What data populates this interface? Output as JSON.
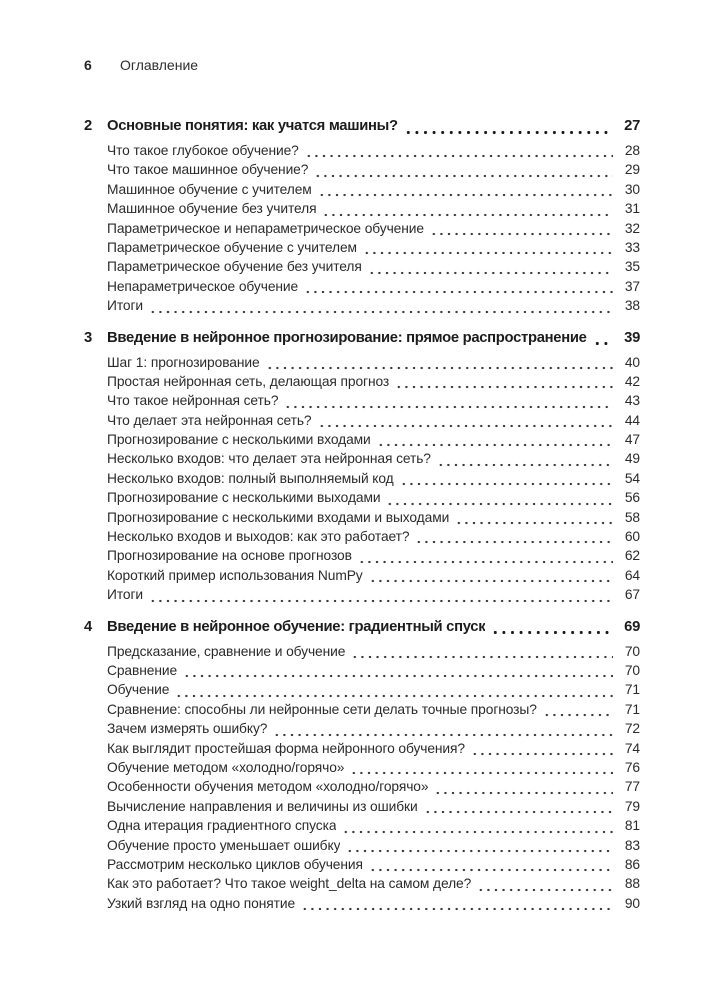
{
  "header": {
    "page_number": "6",
    "title": "Оглавление"
  },
  "chapters": [
    {
      "number": "2",
      "title": "Основные понятия: как учатся машины?",
      "page": "27",
      "entries": [
        {
          "title": "Что такое глубокое обучение?",
          "page": "28"
        },
        {
          "title": "Что такое машинное обучение?",
          "page": "29"
        },
        {
          "title": "Машинное обучение с учителем",
          "page": "30"
        },
        {
          "title": "Машинное обучение без учителя",
          "page": "31"
        },
        {
          "title": "Параметрическое и непараметрическое обучение",
          "page": "32"
        },
        {
          "title": "Параметрическое обучение с учителем",
          "page": "33"
        },
        {
          "title": "Параметрическое обучение без учителя",
          "page": "35"
        },
        {
          "title": "Непараметрическое обучение",
          "page": "37"
        },
        {
          "title": "Итоги",
          "page": "38"
        }
      ]
    },
    {
      "number": "3",
      "title": "Введение в нейронное прогнозирование: прямое распространение",
      "page": "39",
      "entries": [
        {
          "title": "Шаг 1: прогнозирование",
          "page": "40"
        },
        {
          "title": "Простая нейронная сеть, делающая прогноз",
          "page": "42"
        },
        {
          "title": "Что такое нейронная сеть?",
          "page": "43"
        },
        {
          "title": "Что делает эта нейронная сеть?",
          "page": "44"
        },
        {
          "title": "Прогнозирование с несколькими входами",
          "page": "47"
        },
        {
          "title": "Несколько входов: что делает эта нейронная сеть?",
          "page": "49"
        },
        {
          "title": "Несколько входов: полный выполняемый код",
          "page": "54"
        },
        {
          "title": "Прогнозирование с несколькими выходами",
          "page": "56"
        },
        {
          "title": "Прогнозирование с несколькими входами и выходами",
          "page": "58"
        },
        {
          "title": "Несколько входов и выходов: как это работает?",
          "page": "60"
        },
        {
          "title": "Прогнозирование на основе прогнозов",
          "page": "62"
        },
        {
          "title": "Короткий пример использования NumPy",
          "page": "64"
        },
        {
          "title": "Итоги",
          "page": "67"
        }
      ]
    },
    {
      "number": "4",
      "title": "Введение в нейронное обучение: градиентный спуск",
      "page": "69",
      "entries": [
        {
          "title": "Предсказание, сравнение и обучение",
          "page": "70"
        },
        {
          "title": "Сравнение",
          "page": "70"
        },
        {
          "title": "Обучение",
          "page": "71"
        },
        {
          "title": "Сравнение: способны ли нейронные сети делать точные прогнозы?",
          "page": "71"
        },
        {
          "title": "Зачем измерять ошибку?",
          "page": "72"
        },
        {
          "title": "Как выглядит простейшая форма нейронного обучения?",
          "page": "74"
        },
        {
          "title": "Обучение методом «холодно/горячо»",
          "page": "76"
        },
        {
          "title": "Особенности обучения методом «холодно/горячо»",
          "page": "77"
        },
        {
          "title": "Вычисление направления и величины из ошибки",
          "page": "79"
        },
        {
          "title": "Одна итерация градиентного спуска",
          "page": "81"
        },
        {
          "title": "Обучение просто уменьшает ошибку",
          "page": "83"
        },
        {
          "title": "Рассмотрим несколько циклов обучения",
          "page": "86"
        },
        {
          "title": "Как это работает? Что такое weight_delta на самом деле?",
          "page": "88"
        },
        {
          "title": "Узкий взгляд на одно понятие",
          "page": "90"
        }
      ]
    }
  ]
}
